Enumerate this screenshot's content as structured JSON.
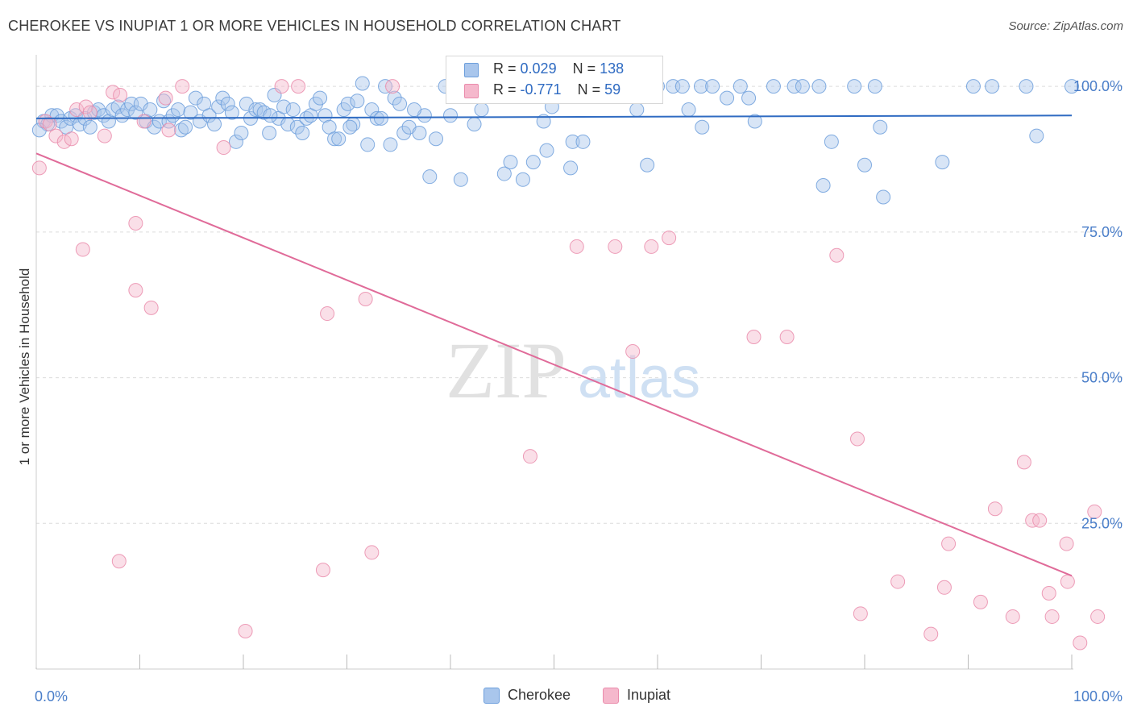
{
  "title": "CHEROKEE VS INUPIAT 1 OR MORE VEHICLES IN HOUSEHOLD CORRELATION CHART",
  "source": "Source: ZipAtlas.com",
  "watermark": {
    "zip": "ZIP",
    "atlas": "atlas"
  },
  "legend": {
    "rows": [
      {
        "r_label": "R =",
        "r_value": "0.029",
        "n_label": "N =",
        "n_value": "138"
      },
      {
        "r_label": "R =",
        "r_value": "-0.771",
        "n_label": "N =",
        "n_value": "59"
      }
    ]
  },
  "bottom_legend": [
    "Cherokee",
    "Inupiat"
  ],
  "colors": {
    "cherokee_fill": "#a9c6ec",
    "cherokee_stroke": "#6d9fdc",
    "cherokee_line": "#2f6bc2",
    "inupiat_fill": "#f5b8cc",
    "inupiat_stroke": "#ea8cac",
    "inupiat_line": "#e06b99",
    "tick_label": "#4a7ec9",
    "grid": "#dcdcdc"
  },
  "chart_data": {
    "type": "scatter",
    "title": "CHEROKEE VS INUPIAT 1 OR MORE VEHICLES IN HOUSEHOLD CORRELATION CHART",
    "xlabel": "",
    "ylabel": "1 or more Vehicles in Household",
    "xlim": [
      0,
      100
    ],
    "ylim": [
      0,
      105
    ],
    "x_tick_labels": [
      {
        "value": 0,
        "label": "0.0%"
      },
      {
        "value": 100,
        "label": "100.0%"
      }
    ],
    "y_tick_labels": [
      {
        "value": 25,
        "label": "25.0%"
      },
      {
        "value": 50,
        "label": "50.0%"
      },
      {
        "value": 75,
        "label": "75.0%"
      },
      {
        "value": 100,
        "label": "100.0%"
      }
    ],
    "grid": true,
    "legend_position": "top-center",
    "series": [
      {
        "name": "Cherokee",
        "r": 0.029,
        "n": 138,
        "trend": {
          "x": [
            0,
            100
          ],
          "y": [
            94.5,
            95.0
          ]
        },
        "points": [
          [
            0.7,
            94
          ],
          [
            1.1,
            93.5
          ],
          [
            1.5,
            95
          ],
          [
            2,
            95
          ],
          [
            2.4,
            94
          ],
          [
            2.9,
            93
          ],
          [
            3.3,
            94.5
          ],
          [
            3.8,
            95
          ],
          [
            4.2,
            93.5
          ],
          [
            4.7,
            94.5
          ],
          [
            5.2,
            93
          ],
          [
            5.6,
            95.5
          ],
          [
            6,
            96
          ],
          [
            6.5,
            95
          ],
          [
            7,
            94
          ],
          [
            7.4,
            96
          ],
          [
            7.9,
            96.5
          ],
          [
            8.3,
            95
          ],
          [
            8.8,
            96
          ],
          [
            9.2,
            97
          ],
          [
            9.6,
            95.5
          ],
          [
            10.1,
            97
          ],
          [
            10.6,
            94
          ],
          [
            11,
            96
          ],
          [
            11.4,
            93
          ],
          [
            11.9,
            94
          ],
          [
            12.3,
            97.5
          ],
          [
            12.8,
            94
          ],
          [
            13.2,
            95
          ],
          [
            13.7,
            96
          ],
          [
            14,
            92.5
          ],
          [
            14.4,
            93
          ],
          [
            14.9,
            95.5
          ],
          [
            15.4,
            98
          ],
          [
            15.8,
            94
          ],
          [
            16.2,
            97
          ],
          [
            16.7,
            95
          ],
          [
            17.2,
            93.5
          ],
          [
            17.6,
            96.5
          ],
          [
            18,
            98
          ],
          [
            18.5,
            97
          ],
          [
            18.9,
            95.5
          ],
          [
            19.3,
            90.5
          ],
          [
            19.8,
            92
          ],
          [
            20.3,
            97
          ],
          [
            20.7,
            94.5
          ],
          [
            21.2,
            96
          ],
          [
            21.6,
            96
          ],
          [
            22,
            95.5
          ],
          [
            22.5,
            92
          ],
          [
            23,
            98.5
          ],
          [
            23.4,
            94.5
          ],
          [
            23.9,
            96.5
          ],
          [
            24.3,
            93.5
          ],
          [
            24.8,
            96
          ],
          [
            25.2,
            93
          ],
          [
            25.7,
            92
          ],
          [
            26.1,
            94.5
          ],
          [
            26.5,
            95
          ],
          [
            27,
            97
          ],
          [
            27.4,
            98
          ],
          [
            27.9,
            95
          ],
          [
            28.3,
            93
          ],
          [
            28.8,
            91
          ],
          [
            29.2,
            91
          ],
          [
            29.7,
            96
          ],
          [
            30.1,
            97
          ],
          [
            30.6,
            93.5
          ],
          [
            31,
            97.5
          ],
          [
            31.5,
            100.5
          ],
          [
            32,
            90
          ],
          [
            32.4,
            96
          ],
          [
            32.9,
            94.5
          ],
          [
            33.3,
            94.5
          ],
          [
            33.7,
            100
          ],
          [
            34.2,
            90
          ],
          [
            34.6,
            98
          ],
          [
            35.1,
            97
          ],
          [
            35.5,
            92
          ],
          [
            36,
            93
          ],
          [
            37,
            92
          ],
          [
            37.5,
            95
          ],
          [
            38,
            84.5
          ],
          [
            38.6,
            91
          ],
          [
            39.5,
            100
          ],
          [
            41,
            84
          ],
          [
            42.3,
            93.5
          ],
          [
            45,
            100
          ],
          [
            45.2,
            85
          ],
          [
            45.4,
            100
          ],
          [
            45.8,
            87
          ],
          [
            46.7,
            100
          ],
          [
            47,
            84
          ],
          [
            48,
            87
          ],
          [
            49,
            94
          ],
          [
            49.3,
            89
          ],
          [
            51.6,
            86
          ],
          [
            51.8,
            90.5
          ],
          [
            52.8,
            90.5
          ],
          [
            56,
            100
          ],
          [
            56.2,
            100
          ],
          [
            59,
            86.5
          ],
          [
            60,
            100
          ],
          [
            61.5,
            100
          ],
          [
            62.4,
            100
          ],
          [
            63,
            96
          ],
          [
            64.2,
            100
          ],
          [
            64.3,
            93
          ],
          [
            65.3,
            100
          ],
          [
            66.7,
            98
          ],
          [
            68,
            100
          ],
          [
            68.8,
            98
          ],
          [
            69.4,
            94
          ],
          [
            71.2,
            100
          ],
          [
            73.2,
            100
          ],
          [
            74,
            100
          ],
          [
            75.6,
            100
          ],
          [
            76,
            83
          ],
          [
            76.8,
            90.5
          ],
          [
            79,
            100
          ],
          [
            80,
            86.5
          ],
          [
            81,
            100
          ],
          [
            81.5,
            93
          ],
          [
            81.8,
            81
          ],
          [
            87.5,
            87
          ],
          [
            90.5,
            100
          ],
          [
            92.3,
            100
          ],
          [
            95.6,
            100
          ],
          [
            96.6,
            91.5
          ],
          [
            100,
            100
          ],
          [
            22.6,
            95
          ],
          [
            30.3,
            93
          ],
          [
            36.5,
            96
          ],
          [
            40,
            95
          ],
          [
            43,
            96
          ],
          [
            49.8,
            96.5
          ],
          [
            58,
            96
          ],
          [
            0.3,
            92.5
          ]
        ]
      },
      {
        "name": "Inupiat",
        "r": -0.771,
        "n": 59,
        "trend": {
          "x": [
            0,
            100
          ],
          "y": [
            88.5,
            16.0
          ]
        },
        "points": [
          [
            0.3,
            86
          ],
          [
            0.9,
            94
          ],
          [
            1.3,
            93.5
          ],
          [
            1.9,
            91.5
          ],
          [
            2.7,
            90.5
          ],
          [
            3.4,
            91
          ],
          [
            3.9,
            96
          ],
          [
            4.5,
            72
          ],
          [
            4.8,
            96.5
          ],
          [
            5.2,
            95.5
          ],
          [
            6.6,
            91.5
          ],
          [
            7.4,
            99
          ],
          [
            8,
            18.5
          ],
          [
            8.1,
            98.5
          ],
          [
            9.6,
            65
          ],
          [
            9.6,
            76.5
          ],
          [
            10.4,
            94
          ],
          [
            11.1,
            62
          ],
          [
            12.5,
            98
          ],
          [
            12.8,
            92.5
          ],
          [
            14.1,
            100
          ],
          [
            18.1,
            89.5
          ],
          [
            20.2,
            6.5
          ],
          [
            23.7,
            100
          ],
          [
            25.3,
            100
          ],
          [
            27.7,
            17
          ],
          [
            28.1,
            61
          ],
          [
            31.8,
            63.5
          ],
          [
            32.4,
            20
          ],
          [
            34.4,
            100
          ],
          [
            47.7,
            36.5
          ],
          [
            50,
            100
          ],
          [
            52.2,
            72.5
          ],
          [
            55.9,
            72.5
          ],
          [
            57.6,
            54.5
          ],
          [
            59.4,
            72.5
          ],
          [
            61.1,
            74
          ],
          [
            69.3,
            57
          ],
          [
            72.5,
            57
          ],
          [
            77.3,
            71
          ],
          [
            79.3,
            39.5
          ],
          [
            79.6,
            9.5
          ],
          [
            83.2,
            15
          ],
          [
            86.4,
            6
          ],
          [
            87.7,
            14
          ],
          [
            88.1,
            21.5
          ],
          [
            91.2,
            11.5
          ],
          [
            92.6,
            27.5
          ],
          [
            94.3,
            9
          ],
          [
            95.4,
            35.5
          ],
          [
            96.2,
            25.5
          ],
          [
            96.9,
            25.5
          ],
          [
            97.8,
            13
          ],
          [
            98.1,
            9
          ],
          [
            99.5,
            21.5
          ],
          [
            99.6,
            15
          ],
          [
            100.8,
            4.5
          ],
          [
            102.2,
            27
          ],
          [
            102.5,
            9
          ]
        ]
      }
    ]
  }
}
